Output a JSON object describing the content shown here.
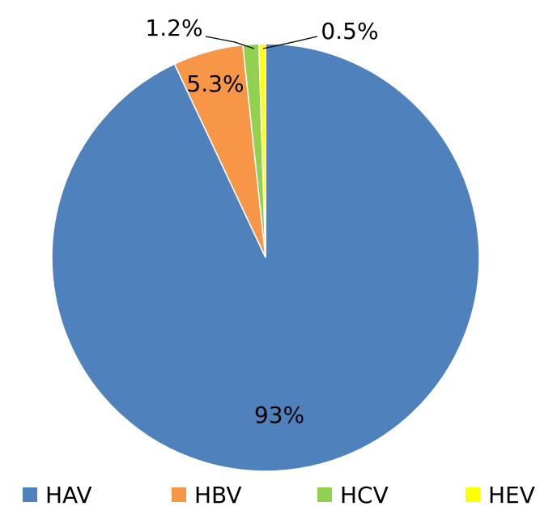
{
  "chart_data": {
    "type": "pie",
    "categories": [
      "HAV",
      "HBV",
      "HCV",
      "HEV"
    ],
    "values": [
      93,
      5.3,
      1.2,
      0.5
    ],
    "data_labels": [
      "93%",
      "5.3%",
      "1.2%",
      "0.5%"
    ],
    "colors": [
      "#4f81bd",
      "#f79646",
      "#92d050",
      "#ffff00"
    ],
    "legend_position": "bottom"
  }
}
